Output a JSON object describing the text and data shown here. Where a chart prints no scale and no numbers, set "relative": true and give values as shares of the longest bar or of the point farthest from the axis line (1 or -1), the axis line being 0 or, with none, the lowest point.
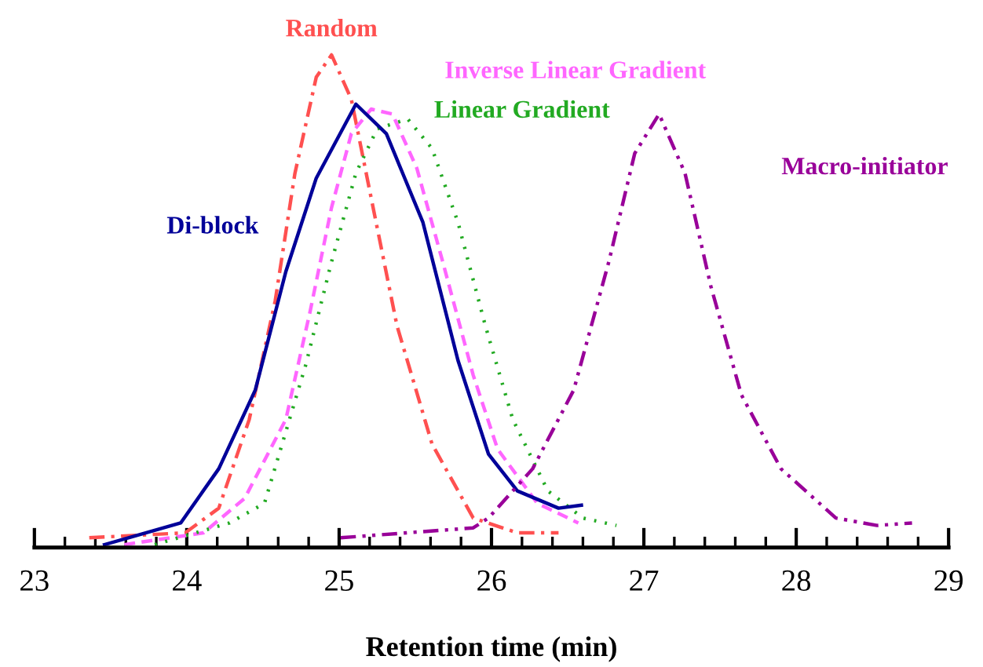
{
  "chart_data": {
    "type": "line",
    "relative": true,
    "xlabel": "Retention time (min)",
    "xlim": [
      23,
      29
    ],
    "xticks": [
      23,
      {
        "value": 23.2,
        "label": null
      },
      {
        "value": 23.4,
        "label": null
      },
      {
        "value": 23.6,
        "label": null
      },
      {
        "value": 23.8,
        "label": null
      },
      24,
      {
        "value": 24.2,
        "label": null
      },
      {
        "value": 24.4,
        "label": null
      },
      {
        "value": 24.6,
        "label": null
      },
      {
        "value": 24.8,
        "label": null
      },
      25,
      {
        "value": 25.2,
        "label": null
      },
      {
        "value": 25.4,
        "label": null
      },
      {
        "value": 25.6,
        "label": null
      },
      {
        "value": 25.8,
        "label": null
      },
      26,
      {
        "value": 26.2,
        "label": null
      },
      {
        "value": 26.4,
        "label": null
      },
      {
        "value": 26.6,
        "label": null
      },
      {
        "value": 26.8,
        "label": null
      },
      27,
      {
        "value": 27.2,
        "label": null
      },
      {
        "value": 27.4,
        "label": null
      },
      {
        "value": 27.6,
        "label": null
      },
      {
        "value": 27.8,
        "label": null
      },
      28,
      {
        "value": 28.2,
        "label": null
      },
      {
        "value": 28.4,
        "label": null
      },
      {
        "value": 28.6,
        "label": null
      },
      {
        "value": 28.8,
        "label": null
      },
      29
    ],
    "grid": false,
    "legend": false,
    "marker": "none",
    "series": [
      {
        "name": "Random",
        "color": "#ff5050",
        "line_style": "dashdot",
        "x": [
          23.36,
          23.99,
          24.21,
          24.41,
          24.58,
          24.71,
          24.85,
          24.95,
          25.08,
          25.21,
          25.38,
          25.61,
          25.88,
          26.17,
          26.44
        ],
        "values": [
          0.02,
          0.03,
          0.08,
          0.26,
          0.5,
          0.76,
          0.955,
          1.0,
          0.91,
          0.71,
          0.45,
          0.21,
          0.06,
          0.03,
          0.03
        ]
      },
      {
        "name": "Inverse Linear Gradient",
        "color": "#ff66ff",
        "line_style": "dashed",
        "x": [
          23.59,
          24.11,
          24.38,
          24.65,
          24.81,
          24.95,
          25.08,
          25.21,
          25.35,
          25.51,
          25.68,
          25.88,
          26.04,
          26.3,
          26.57
        ],
        "values": [
          0.006,
          0.03,
          0.1,
          0.26,
          0.48,
          0.69,
          0.84,
          0.89,
          0.88,
          0.77,
          0.58,
          0.35,
          0.2,
          0.09,
          0.05
        ]
      },
      {
        "name": "Linear Gradient",
        "color": "#22aa22",
        "line_style": "dotted",
        "x": [
          23.79,
          24.28,
          24.51,
          24.78,
          24.95,
          25.11,
          25.25,
          25.45,
          25.61,
          25.78,
          25.96,
          26.14,
          26.37,
          26.6,
          26.82
        ],
        "values": [
          0.006,
          0.05,
          0.09,
          0.37,
          0.58,
          0.76,
          0.85,
          0.87,
          0.81,
          0.66,
          0.45,
          0.26,
          0.115,
          0.06,
          0.045
        ]
      },
      {
        "name": "Di-block",
        "color": "#000099",
        "line_style": "solid",
        "x": [
          23.46,
          23.96,
          24.21,
          24.45,
          24.65,
          24.85,
          25.11,
          25.31,
          25.55,
          25.78,
          25.98,
          26.17,
          26.44,
          26.59
        ],
        "values": [
          0.006,
          0.05,
          0.16,
          0.32,
          0.56,
          0.75,
          0.9,
          0.84,
          0.66,
          0.38,
          0.19,
          0.115,
          0.08,
          0.086
        ]
      },
      {
        "name": "Macro-initiator",
        "color": "#990099",
        "line_style": "dashdotdot",
        "x": [
          25.01,
          25.88,
          25.98,
          26.27,
          26.54,
          26.77,
          26.94,
          27.1,
          27.27,
          27.44,
          27.64,
          27.9,
          28.26,
          28.53,
          28.76
        ],
        "values": [
          0.02,
          0.04,
          0.06,
          0.16,
          0.32,
          0.58,
          0.8,
          0.88,
          0.76,
          0.53,
          0.31,
          0.16,
          0.06,
          0.045,
          0.05
        ]
      }
    ]
  }
}
